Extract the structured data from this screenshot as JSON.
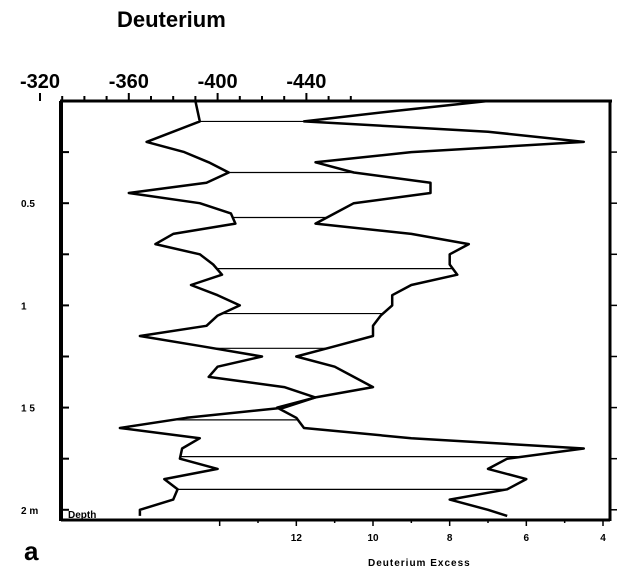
{
  "chart_data": {
    "type": "line",
    "title": "Deuterium",
    "panel_label": "a",
    "depth_axis": {
      "tick_labels": [
        "0.5",
        "1",
        "1 5",
        "2 m"
      ],
      "tick_values": [
        0.5,
        1.0,
        1.5,
        2.0
      ],
      "label": "Depth",
      "range": [
        0,
        2.05
      ]
    },
    "deuterium_axis": {
      "position": "top",
      "tick_labels": [
        "-320",
        "-360",
        "-400",
        "-440"
      ],
      "tick_values": [
        -320,
        -360,
        -400,
        -440
      ],
      "range": [
        -320,
        -470
      ]
    },
    "excess_axis": {
      "position": "bottom-right",
      "label": "Deuterium Excess",
      "tick_labels": [
        "12",
        "10",
        "8",
        "6",
        "4"
      ],
      "tick_values": [
        12,
        10,
        8,
        6,
        4
      ],
      "range": [
        16,
        4
      ]
    },
    "series": [
      {
        "axis": "deuterium",
        "depth": [
          0.0,
          0.05,
          0.1,
          0.15,
          0.2,
          0.25,
          0.3,
          0.35,
          0.4,
          0.45,
          0.5,
          0.55,
          0.6,
          0.65,
          0.7,
          0.75,
          0.8,
          0.85,
          0.9,
          0.95,
          1.0,
          1.05,
          1.1,
          1.15,
          1.2,
          1.25,
          1.3,
          1.35,
          1.4,
          1.45,
          1.5,
          1.55,
          1.6,
          1.65,
          1.7,
          1.75,
          1.8,
          1.85,
          1.9,
          1.95,
          2.0,
          2.03
        ],
        "values": [
          -390,
          -391,
          -392,
          -380,
          -368,
          -385,
          -396,
          -405,
          -395,
          -360,
          -392,
          -406,
          -408,
          -380,
          -372,
          -392,
          -398,
          -402,
          -388,
          -400,
          -410,
          -400,
          -395,
          -365,
          -393,
          -420,
          -400,
          -396,
          -430,
          -444,
          -430,
          -386,
          -356,
          -392,
          -384,
          -383,
          -400,
          -376,
          -382,
          -380,
          -365,
          -365
        ]
      },
      {
        "axis": "excess",
        "depth": [
          0.0,
          0.05,
          0.1,
          0.15,
          0.2,
          0.25,
          0.3,
          0.35,
          0.4,
          0.45,
          0.5,
          0.55,
          0.6,
          0.65,
          0.7,
          0.75,
          0.8,
          0.85,
          0.9,
          0.95,
          1.0,
          1.05,
          1.1,
          1.15,
          1.2,
          1.25,
          1.3,
          1.35,
          1.4,
          1.45,
          1.5,
          1.55,
          1.6,
          1.65,
          1.7,
          1.75,
          1.8,
          1.85,
          1.9,
          1.95,
          2.0,
          2.03
        ],
        "values": [
          7.0,
          9.5,
          11.8,
          7.0,
          4.5,
          9.0,
          11.5,
          10.5,
          8.5,
          8.5,
          10.5,
          11.0,
          11.5,
          9.0,
          7.5,
          8.0,
          8.0,
          7.8,
          9.0,
          9.5,
          9.5,
          9.8,
          10.0,
          10.0,
          11.0,
          12.0,
          11.0,
          10.5,
          10.0,
          11.5,
          12.5,
          12.0,
          11.8,
          9.0,
          4.5,
          6.5,
          7.0,
          6.0,
          6.5,
          8.0,
          7.0,
          6.5
        ]
      }
    ],
    "tie_lines_depth": [
      0.1,
      0.35,
      0.57,
      0.82,
      1.04,
      1.21,
      1.45,
      1.56,
      1.74,
      1.9
    ],
    "grid": false
  }
}
